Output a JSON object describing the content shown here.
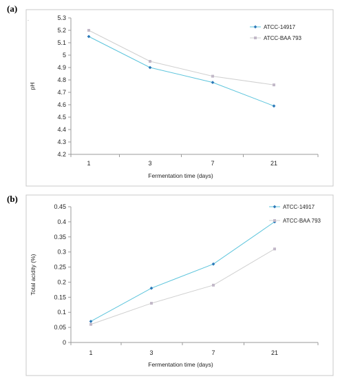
{
  "colors": {
    "series1": "#5bc4dc",
    "series2": "#cfcfcf",
    "series2_marker": "#c2b8c8",
    "series1_marker": "#2a78b8",
    "axis": "#9a9a9a",
    "frame": "#c8c8c8"
  },
  "chart_data": [
    {
      "type": "line",
      "panel_label": "(a)",
      "title": "",
      "categories": [
        "1",
        "3",
        "7",
        "21"
      ],
      "series": [
        {
          "name": "ATCC-14917",
          "values": [
            5.15,
            4.9,
            4.78,
            4.59
          ]
        },
        {
          "name": "ATCC-BAA 793",
          "values": [
            5.2,
            4.95,
            4.83,
            4.76
          ]
        }
      ],
      "xlabel": "Fermentation time (days)",
      "ylabel": "pH",
      "ylim": [
        4.2,
        5.3
      ],
      "yticks": [
        "4.2",
        "4.3",
        "4.4",
        "4.5",
        "4.6",
        "4.7",
        "4.8",
        "4.9",
        "5",
        "5.1",
        "5.2",
        "5.3"
      ],
      "grid": false,
      "legend": "top-right"
    },
    {
      "type": "line",
      "panel_label": "(b)",
      "title": "",
      "categories": [
        "1",
        "3",
        "7",
        "21"
      ],
      "series": [
        {
          "name": "ATCC-14917",
          "values": [
            0.07,
            0.18,
            0.26,
            0.4
          ]
        },
        {
          "name": "ATCC-BAA 793",
          "values": [
            0.06,
            0.13,
            0.19,
            0.31
          ]
        }
      ],
      "xlabel": "Fermentation time (days)",
      "ylabel": "Total acidity (%)",
      "ylim": [
        0,
        0.45
      ],
      "yticks": [
        "0",
        "0.05",
        "0.1",
        "0.15",
        "0.2",
        "0.25",
        "0.3",
        "0.35",
        "0.4",
        "0.45"
      ],
      "grid": false,
      "legend": "top-right"
    }
  ]
}
